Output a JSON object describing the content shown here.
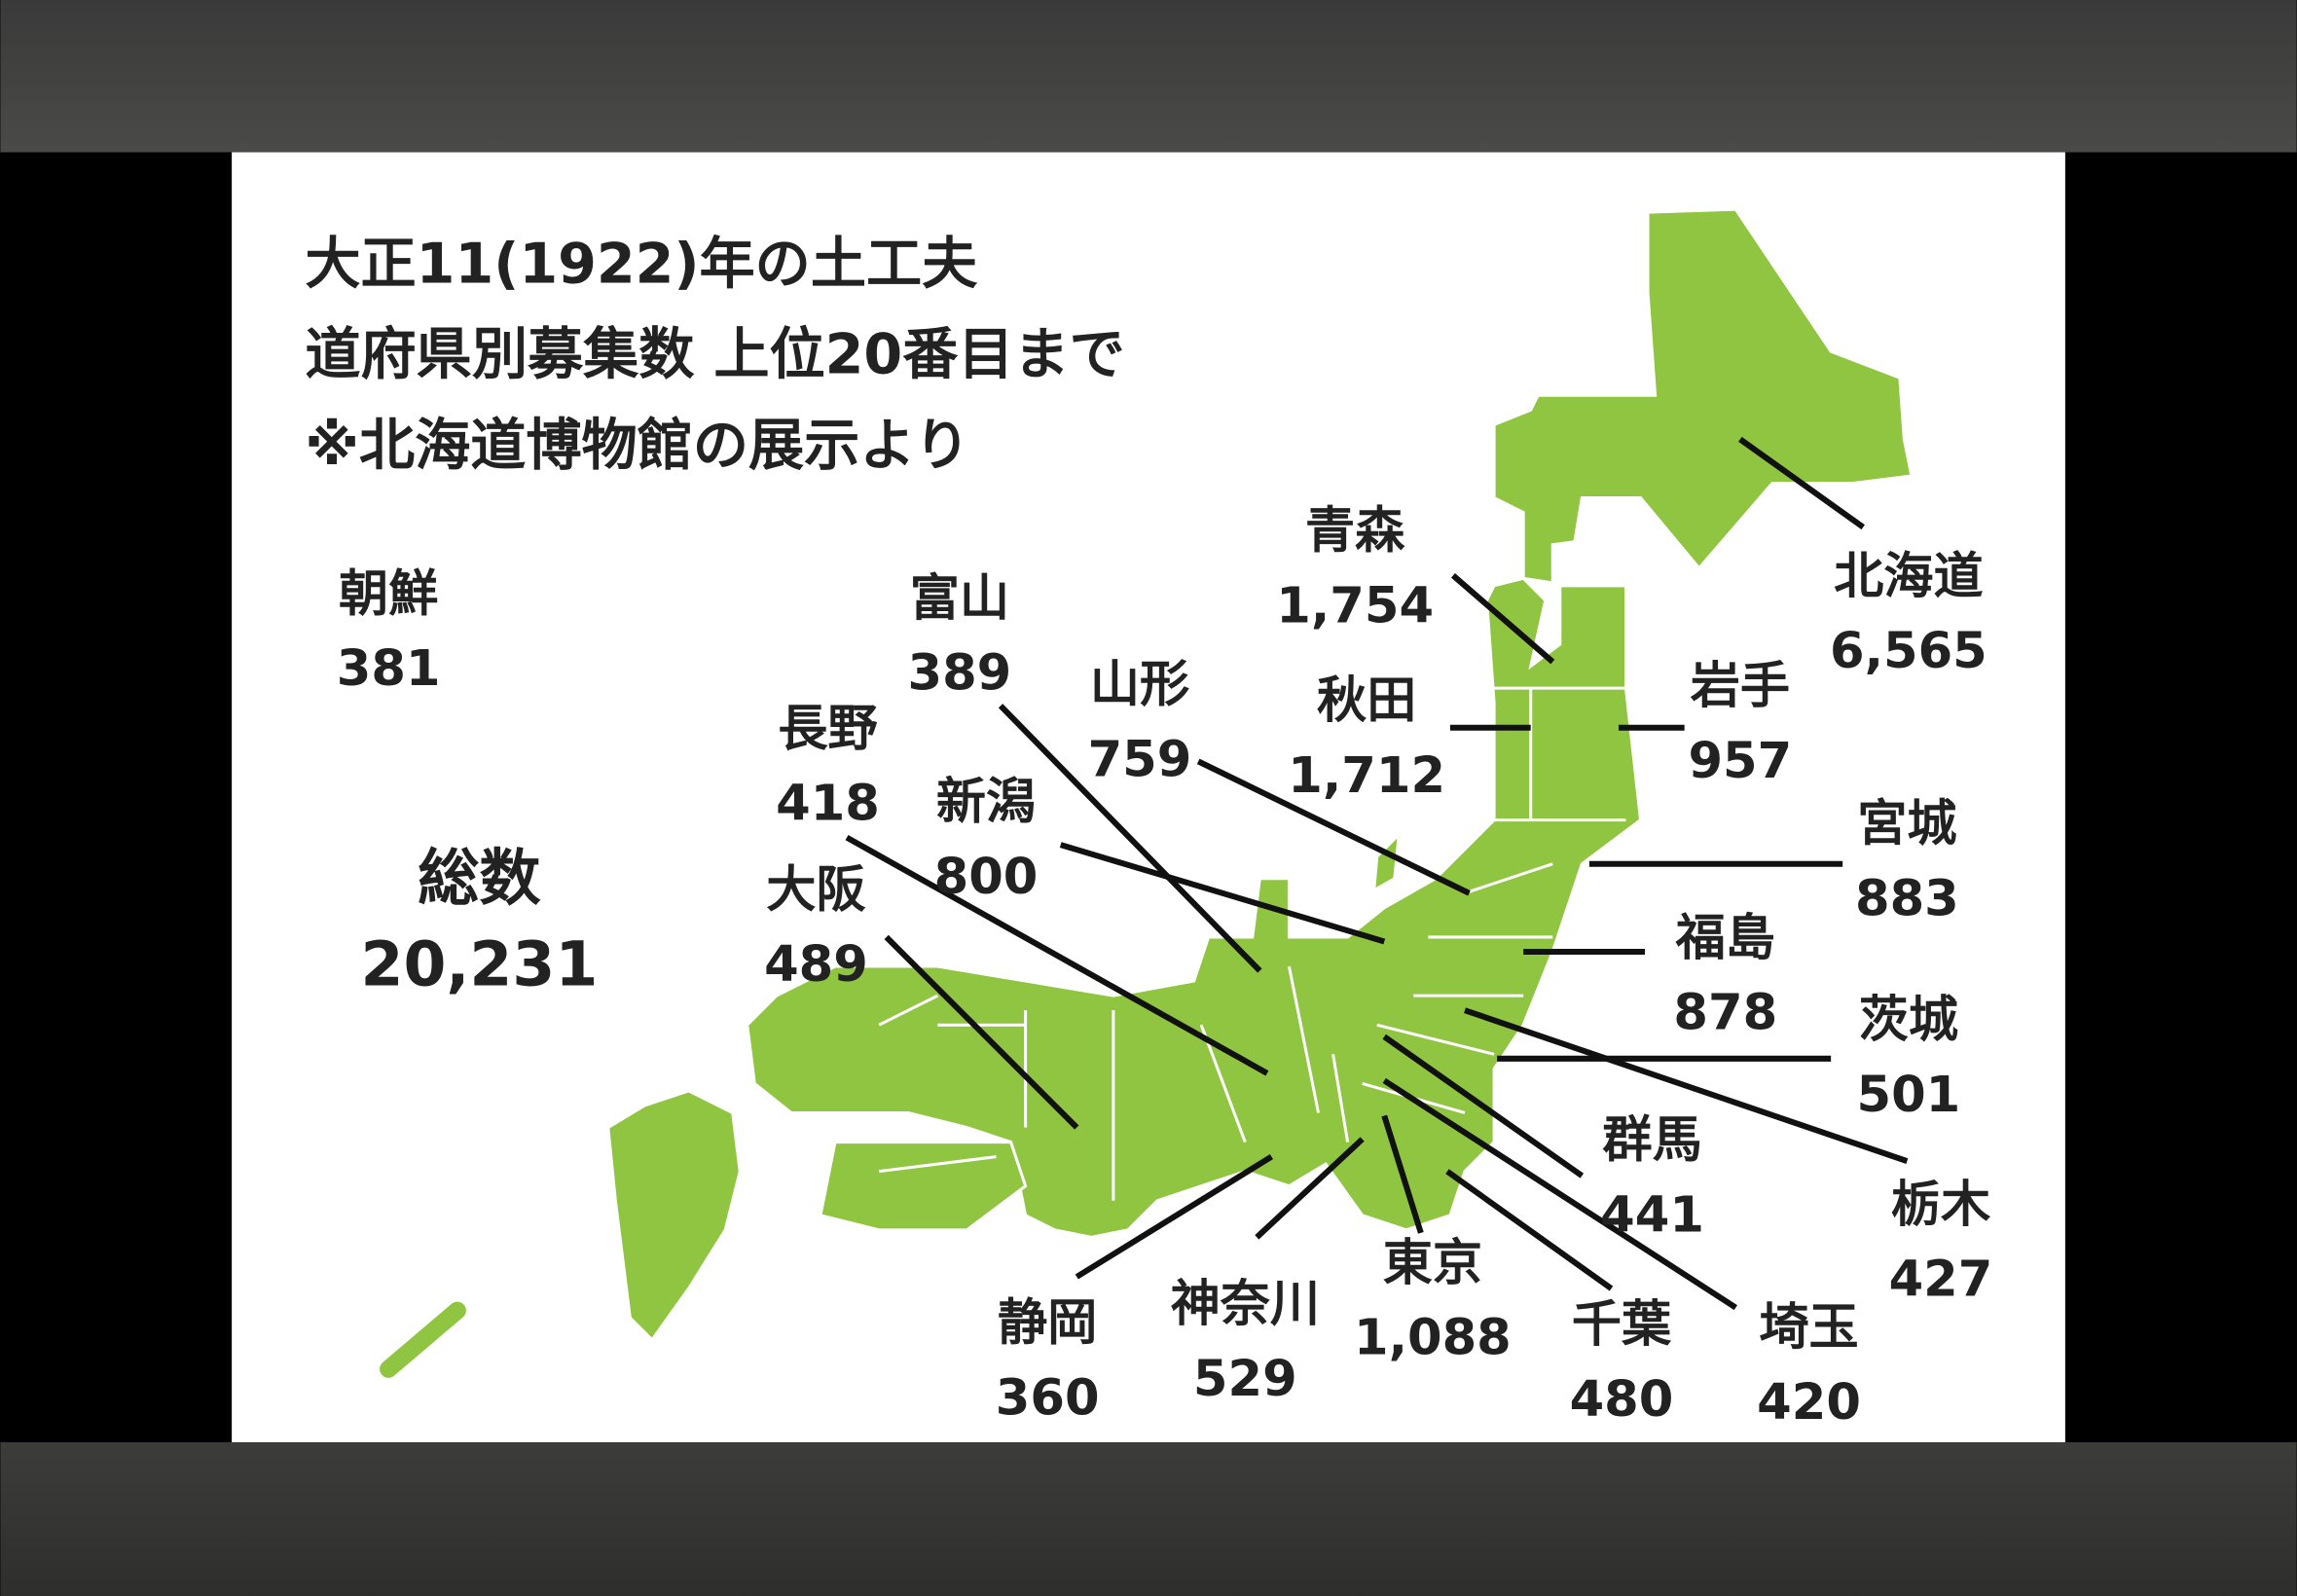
{
  "title_lines": [
    "大正11(1922)年の土工夫",
    "道府県別募集数 上位20番目まで",
    "※北海道博物館の展示より"
  ],
  "map_fill_color": "#8fc540",
  "total": {
    "label": "総数",
    "value": "20,231"
  },
  "regions": [
    {
      "name": "北海道",
      "value": "6,565"
    },
    {
      "name": "青森",
      "value": "1,754"
    },
    {
      "name": "岩手",
      "value": "957"
    },
    {
      "name": "秋田",
      "value": "1,712"
    },
    {
      "name": "山形",
      "value": "759"
    },
    {
      "name": "宮城",
      "value": "883"
    },
    {
      "name": "福島",
      "value": "878"
    },
    {
      "name": "茨城",
      "value": "501"
    },
    {
      "name": "栃木",
      "value": "427"
    },
    {
      "name": "群馬",
      "value": "441"
    },
    {
      "name": "埼玉",
      "value": "420"
    },
    {
      "name": "千葉",
      "value": "480"
    },
    {
      "name": "東京",
      "value": "1,088"
    },
    {
      "name": "神奈川",
      "value": "529"
    },
    {
      "name": "静岡",
      "value": "360"
    },
    {
      "name": "大阪",
      "value": "489"
    },
    {
      "name": "長野",
      "value": "418"
    },
    {
      "name": "新潟",
      "value": "800"
    },
    {
      "name": "富山",
      "value": "389"
    },
    {
      "name": "朝鮮",
      "value": "381"
    }
  ]
}
